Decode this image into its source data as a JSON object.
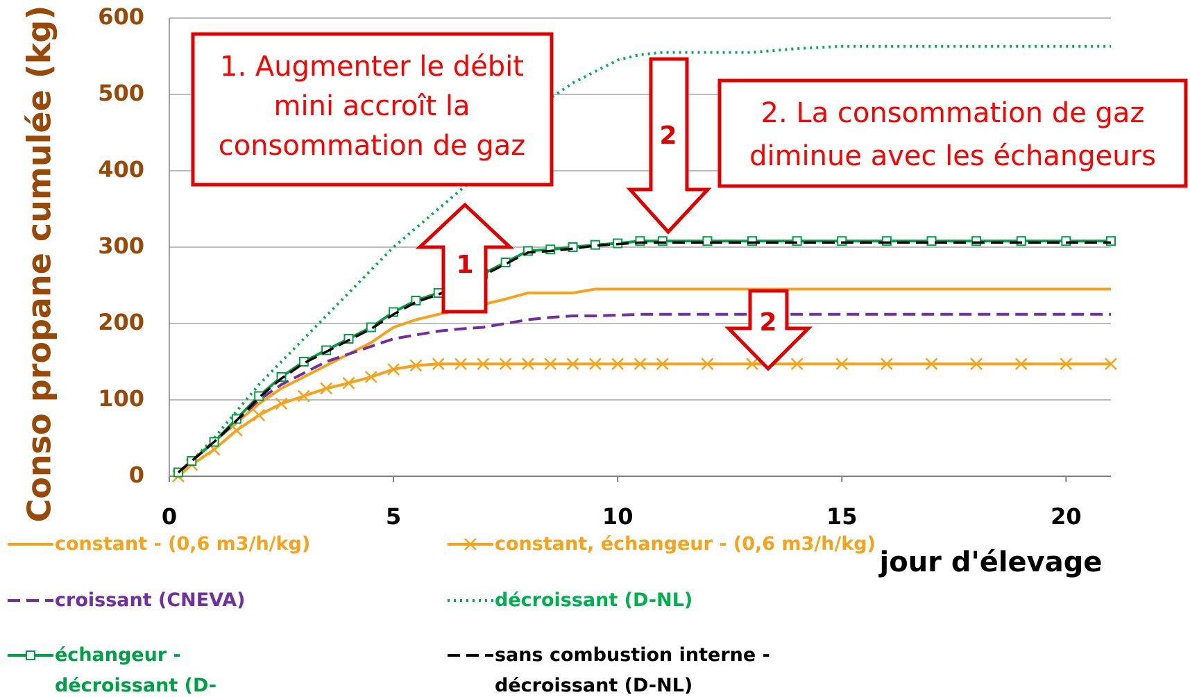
{
  "chart_data": {
    "type": "line",
    "xlabel": "jour d'élevage",
    "ylabel": "Conso propane cumulée (kg)",
    "x": [
      0.2,
      0.5,
      1,
      1.5,
      2,
      2.5,
      3,
      3.5,
      4,
      4.5,
      5,
      5.5,
      6,
      6.5,
      7,
      7.5,
      8,
      8.5,
      9,
      9.5,
      10,
      10.5,
      11,
      12,
      13,
      14,
      15,
      16,
      17,
      18,
      19,
      20,
      21
    ],
    "xlim": [
      0,
      21
    ],
    "xticks": [
      0,
      5,
      10,
      15,
      20
    ],
    "ylim": [
      0,
      600
    ],
    "yticks": [
      0,
      100,
      200,
      300,
      400,
      500,
      600
    ],
    "grid": true,
    "series": [
      {
        "name": "constant - (0,6 m3/h/kg)",
        "color": "#f7a21b",
        "style": "solid",
        "marker": "none",
        "values": [
          5,
          20,
          45,
          70,
          95,
          115,
          130,
          145,
          160,
          175,
          195,
          205,
          212,
          218,
          225,
          232,
          240,
          240,
          240,
          245,
          245,
          245,
          245,
          245,
          245,
          245,
          245,
          245,
          245,
          245,
          245,
          245,
          245
        ]
      },
      {
        "name": "constant, échangeur - (0,6 m3/h/kg)",
        "color": "#f7a21b",
        "style": "solid",
        "marker": "x",
        "values": [
          0,
          15,
          35,
          60,
          80,
          95,
          105,
          115,
          122,
          130,
          140,
          145,
          147,
          147,
          147,
          147,
          147,
          147,
          147,
          147,
          147,
          147,
          147,
          147,
          147,
          147,
          147,
          147,
          147,
          147,
          147,
          147,
          147
        ]
      },
      {
        "name": "croissant (CNEVA)",
        "color": "#7030a0",
        "style": "dashed",
        "marker": "none",
        "values": [
          5,
          20,
          45,
          72,
          100,
          120,
          135,
          150,
          160,
          170,
          180,
          185,
          190,
          193,
          195,
          200,
          205,
          208,
          210,
          210,
          211,
          212,
          212,
          212,
          212,
          212,
          212,
          212,
          212,
          212,
          212,
          212,
          212
        ]
      },
      {
        "name": "décroissant (D-NL)",
        "color": "#00b050",
        "style": "dotted",
        "marker": "none",
        "values": [
          5,
          20,
          50,
          85,
          120,
          150,
          180,
          210,
          240,
          270,
          300,
          325,
          350,
          375,
          400,
          435,
          470,
          495,
          515,
          530,
          545,
          552,
          555,
          555,
          555,
          560,
          563,
          563,
          563,
          563,
          563,
          563,
          563
        ]
      },
      {
        "name": "échangeur - décroissant (D-NL)",
        "color": "#00a047",
        "style": "solid",
        "marker": "square",
        "values": [
          5,
          20,
          45,
          75,
          105,
          130,
          150,
          165,
          180,
          195,
          215,
          230,
          240,
          252,
          265,
          280,
          295,
          297,
          300,
          303,
          305,
          308,
          308,
          308,
          308,
          308,
          308,
          308,
          308,
          308,
          308,
          308,
          308
        ]
      },
      {
        "name": "sans combustion interne - décroissant (D-NL)",
        "color": "#000000",
        "style": "dashed",
        "marker": "none",
        "values": [
          5,
          20,
          45,
          73,
          103,
          128,
          148,
          163,
          178,
          193,
          212,
          228,
          238,
          250,
          263,
          278,
          293,
          295,
          298,
          302,
          304,
          306,
          306,
          306,
          306,
          306,
          306,
          306,
          306,
          306,
          306,
          306,
          306
        ]
      }
    ],
    "annotations": [
      {
        "lines": [
          "1. Augmenter le débit",
          "mini accroît la",
          "consommation de gaz"
        ]
      },
      {
        "lines": [
          "2. La consommation de gaz",
          "diminue avec les échangeurs"
        ]
      },
      {
        "text": "1"
      },
      {
        "text": "2"
      },
      {
        "text": "2"
      }
    ]
  }
}
